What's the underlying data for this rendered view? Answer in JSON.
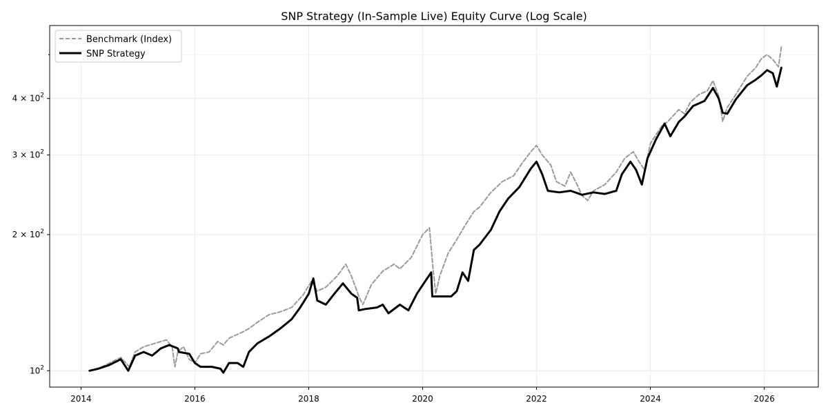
{
  "chart_data": {
    "type": "line",
    "title": "SNP Strategy (In-Sample Live) Equity Curve (Log Scale)",
    "xlabel": "",
    "ylabel": "",
    "y_scale": "log",
    "x_range": [
      2013.45,
      2026.95
    ],
    "y_range": [
      92,
      580
    ],
    "grid": true,
    "legend_placement": "top-left",
    "x_ticks": [
      {
        "value": 2014,
        "label": "2014"
      },
      {
        "value": 2016,
        "label": "2016"
      },
      {
        "value": 2018,
        "label": "2018"
      },
      {
        "value": 2020,
        "label": "2020"
      },
      {
        "value": 2022,
        "label": "2022"
      },
      {
        "value": 2024,
        "label": "2024"
      },
      {
        "value": 2026,
        "label": "2026"
      }
    ],
    "y_ticks": [
      {
        "value": 100,
        "base": "10",
        "exp": "2"
      },
      {
        "value": 200,
        "base": "2 × 10",
        "exp": "2"
      },
      {
        "value": 300,
        "base": "3 × 10",
        "exp": "2"
      },
      {
        "value": 400,
        "base": "4 × 10",
        "exp": "2"
      }
    ],
    "y_minor_ticks": [
      500
    ],
    "series": [
      {
        "name": "Benchmark (Index)",
        "color": "#999999",
        "style": "dashed",
        "points": [
          [
            2014.15,
            100
          ],
          [
            2014.3,
            101
          ],
          [
            2014.5,
            104
          ],
          [
            2014.7,
            107
          ],
          [
            2014.85,
            102
          ],
          [
            2014.95,
            110
          ],
          [
            2015.1,
            113
          ],
          [
            2015.3,
            115
          ],
          [
            2015.5,
            117
          ],
          [
            2015.6,
            113
          ],
          [
            2015.65,
            102
          ],
          [
            2015.7,
            110
          ],
          [
            2015.8,
            113
          ],
          [
            2015.9,
            106
          ],
          [
            2016.0,
            104
          ],
          [
            2016.1,
            109
          ],
          [
            2016.25,
            110
          ],
          [
            2016.4,
            116
          ],
          [
            2016.5,
            114
          ],
          [
            2016.6,
            118
          ],
          [
            2016.85,
            122
          ],
          [
            2016.95,
            124
          ],
          [
            2017.1,
            128
          ],
          [
            2017.3,
            133
          ],
          [
            2017.5,
            135
          ],
          [
            2017.7,
            138
          ],
          [
            2017.9,
            147
          ],
          [
            2018.05,
            158
          ],
          [
            2018.15,
            150
          ],
          [
            2018.3,
            153
          ],
          [
            2018.5,
            162
          ],
          [
            2018.65,
            172
          ],
          [
            2018.75,
            162
          ],
          [
            2018.88,
            146
          ],
          [
            2018.95,
            140
          ],
          [
            2019.1,
            155
          ],
          [
            2019.3,
            166
          ],
          [
            2019.5,
            172
          ],
          [
            2019.6,
            168
          ],
          [
            2019.8,
            178
          ],
          [
            2020.0,
            200
          ],
          [
            2020.12,
            207
          ],
          [
            2020.18,
            170
          ],
          [
            2020.23,
            148
          ],
          [
            2020.3,
            162
          ],
          [
            2020.45,
            182
          ],
          [
            2020.6,
            195
          ],
          [
            2020.75,
            210
          ],
          [
            2020.9,
            225
          ],
          [
            2021.0,
            230
          ],
          [
            2021.2,
            248
          ],
          [
            2021.4,
            262
          ],
          [
            2021.6,
            270
          ],
          [
            2021.75,
            288
          ],
          [
            2021.9,
            305
          ],
          [
            2022.0,
            315
          ],
          [
            2022.1,
            300
          ],
          [
            2022.25,
            285
          ],
          [
            2022.35,
            262
          ],
          [
            2022.5,
            256
          ],
          [
            2022.6,
            275
          ],
          [
            2022.7,
            260
          ],
          [
            2022.8,
            244
          ],
          [
            2022.9,
            238
          ],
          [
            2023.0,
            250
          ],
          [
            2023.2,
            258
          ],
          [
            2023.4,
            275
          ],
          [
            2023.55,
            295
          ],
          [
            2023.7,
            305
          ],
          [
            2023.8,
            290
          ],
          [
            2023.9,
            278
          ],
          [
            2024.0,
            318
          ],
          [
            2024.2,
            348
          ],
          [
            2024.3,
            355
          ],
          [
            2024.5,
            378
          ],
          [
            2024.6,
            370
          ],
          [
            2024.7,
            392
          ],
          [
            2024.85,
            408
          ],
          [
            2025.0,
            416
          ],
          [
            2025.1,
            438
          ],
          [
            2025.2,
            405
          ],
          [
            2025.27,
            356
          ],
          [
            2025.35,
            382
          ],
          [
            2025.5,
            408
          ],
          [
            2025.7,
            448
          ],
          [
            2025.85,
            468
          ],
          [
            2025.95,
            490
          ],
          [
            2026.05,
            500
          ],
          [
            2026.15,
            488
          ],
          [
            2026.25,
            470
          ],
          [
            2026.3,
            520
          ]
        ]
      },
      {
        "name": "SNP Strategy",
        "color": "#000000",
        "style": "solid",
        "points": [
          [
            2014.15,
            100
          ],
          [
            2014.3,
            101
          ],
          [
            2014.5,
            103
          ],
          [
            2014.7,
            106
          ],
          [
            2014.83,
            100
          ],
          [
            2014.95,
            108
          ],
          [
            2015.1,
            110
          ],
          [
            2015.25,
            108
          ],
          [
            2015.4,
            112
          ],
          [
            2015.55,
            114
          ],
          [
            2015.7,
            112
          ],
          [
            2015.72,
            110
          ],
          [
            2015.9,
            109
          ],
          [
            2016.0,
            104
          ],
          [
            2016.1,
            102
          ],
          [
            2016.3,
            102
          ],
          [
            2016.45,
            101
          ],
          [
            2016.5,
            99
          ],
          [
            2016.6,
            104
          ],
          [
            2016.75,
            104
          ],
          [
            2016.85,
            102
          ],
          [
            2016.95,
            110
          ],
          [
            2017.1,
            115
          ],
          [
            2017.3,
            119
          ],
          [
            2017.5,
            124
          ],
          [
            2017.7,
            130
          ],
          [
            2017.85,
            138
          ],
          [
            2018.0,
            148
          ],
          [
            2018.08,
            160
          ],
          [
            2018.15,
            143
          ],
          [
            2018.3,
            140
          ],
          [
            2018.45,
            148
          ],
          [
            2018.6,
            156
          ],
          [
            2018.75,
            148
          ],
          [
            2018.85,
            145
          ],
          [
            2018.88,
            136
          ],
          [
            2019.0,
            137
          ],
          [
            2019.2,
            138
          ],
          [
            2019.3,
            140
          ],
          [
            2019.4,
            134
          ],
          [
            2019.6,
            140
          ],
          [
            2019.75,
            136
          ],
          [
            2019.9,
            148
          ],
          [
            2020.05,
            158
          ],
          [
            2020.15,
            165
          ],
          [
            2020.17,
            146
          ],
          [
            2020.3,
            146
          ],
          [
            2020.5,
            146
          ],
          [
            2020.6,
            150
          ],
          [
            2020.7,
            165
          ],
          [
            2020.8,
            158
          ],
          [
            2020.9,
            185
          ],
          [
            2021.0,
            190
          ],
          [
            2021.2,
            205
          ],
          [
            2021.35,
            225
          ],
          [
            2021.5,
            240
          ],
          [
            2021.7,
            255
          ],
          [
            2021.9,
            280
          ],
          [
            2022.0,
            290
          ],
          [
            2022.1,
            272
          ],
          [
            2022.2,
            250
          ],
          [
            2022.4,
            248
          ],
          [
            2022.6,
            250
          ],
          [
            2022.8,
            245
          ],
          [
            2023.0,
            248
          ],
          [
            2023.2,
            246
          ],
          [
            2023.4,
            250
          ],
          [
            2023.5,
            272
          ],
          [
            2023.65,
            290
          ],
          [
            2023.75,
            278
          ],
          [
            2023.85,
            258
          ],
          [
            2023.95,
            295
          ],
          [
            2024.1,
            325
          ],
          [
            2024.25,
            352
          ],
          [
            2024.35,
            330
          ],
          [
            2024.5,
            355
          ],
          [
            2024.6,
            365
          ],
          [
            2024.75,
            385
          ],
          [
            2024.95,
            395
          ],
          [
            2025.1,
            422
          ],
          [
            2025.2,
            400
          ],
          [
            2025.27,
            372
          ],
          [
            2025.35,
            370
          ],
          [
            2025.5,
            398
          ],
          [
            2025.7,
            428
          ],
          [
            2025.85,
            440
          ],
          [
            2025.95,
            450
          ],
          [
            2026.05,
            462
          ],
          [
            2026.15,
            455
          ],
          [
            2026.22,
            425
          ],
          [
            2026.3,
            468
          ]
        ]
      }
    ]
  }
}
